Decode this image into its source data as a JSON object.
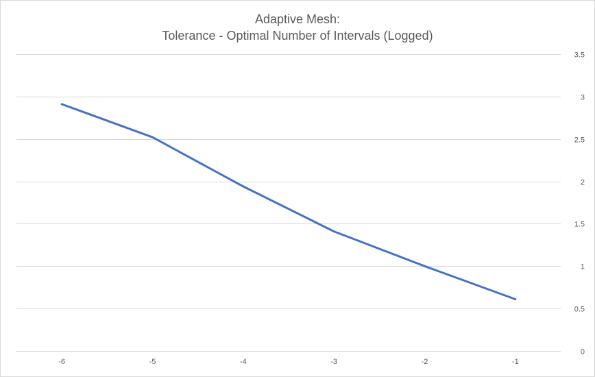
{
  "chart_data": {
    "type": "line",
    "title": [
      "Adaptive Mesh:",
      "Tolerance - Optimal Number of Intervals (Logged)"
    ],
    "xlabel": "",
    "ylabel": "",
    "x": [
      -6,
      -5,
      -4,
      -3,
      -2,
      -1
    ],
    "x_tick_labels": [
      "-6",
      "-5",
      "-4",
      "-3",
      "-2",
      "-1"
    ],
    "series": [
      {
        "values": [
          2.91,
          2.52,
          1.94,
          1.41,
          1.0,
          0.61
        ],
        "color": "#4472c4"
      }
    ],
    "ylim": [
      0,
      3.5
    ],
    "y_ticks": [
      0,
      0.5,
      1,
      1.5,
      2,
      2.5,
      3,
      3.5
    ],
    "y_tick_labels": [
      "0",
      "0.5",
      "1",
      "1.5",
      "2",
      "2.5",
      "3",
      "3.5"
    ],
    "y_axis_position": "right",
    "grid": true,
    "legend": "none"
  }
}
